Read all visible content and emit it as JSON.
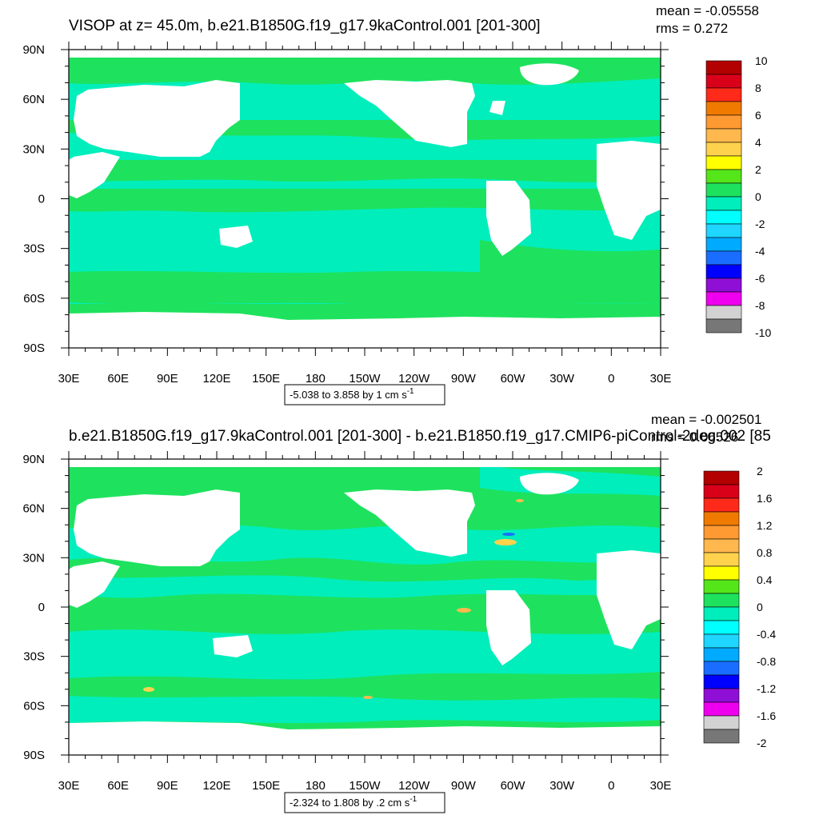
{
  "panels": [
    {
      "title": "VISOP at z=  45.0m, b.e21.B1850G.f19_g17.9kaControl.001 [201-300]",
      "mean_text": "mean = -0.05558",
      "rms_text": "rms = 0.272",
      "range_text": "-5.038 to 3.858 by 1 cm s",
      "range_sup": "-1"
    },
    {
      "title": "b.e21.B1850G.f19_g17.9kaControl.001 [201-300] - b.e21.B1850.f19_g17.CMIP6-piControl-2deg.002 [85",
      "mean_text": "mean = -0.002501",
      "rms_text": "rms = 0.06526",
      "range_text": "-2.324 to 1.808 by .2 cm s",
      "range_sup": "-1"
    }
  ],
  "chart_data": [
    {
      "type": "heatmap",
      "variable": "VISOP",
      "depth": "45.0m",
      "units": "cm s-1",
      "x_ticks": [
        "30E",
        "60E",
        "90E",
        "120E",
        "150E",
        "180",
        "150W",
        "120W",
        "90W",
        "60W",
        "30W",
        "0",
        "30E"
      ],
      "y_ticks": [
        "90N",
        "60N",
        "30N",
        "0",
        "30S",
        "60S",
        "90S"
      ],
      "xlim_deg_east": [
        30,
        390
      ],
      "ylim_deg_north": [
        -90,
        90
      ],
      "stats": {
        "mean": -0.05558,
        "rms": 0.272
      },
      "data_range": {
        "min": -5.038,
        "max": 3.858,
        "interval": 1
      },
      "colorbar": {
        "levels": [
          -10,
          -8,
          -6,
          -4,
          -2,
          0,
          2,
          4,
          6,
          8,
          10
        ],
        "labels": [
          "10",
          "8",
          "6",
          "4",
          "2",
          "0",
          "-2",
          "-4",
          "-6",
          "-8",
          "-10"
        ],
        "colors": [
          "#b30000",
          "#d9001a",
          "#ff2a1a",
          "#f07a00",
          "#ff9a33",
          "#ffb84d",
          "#ffd24d",
          "#ffff00",
          "#55e61a",
          "#1ee25e",
          "#00eebb",
          "#00ffff",
          "#1ed6ff",
          "#00aaff",
          "#1a6eff",
          "#0000ff",
          "#8f0fd6",
          "#ee00ee",
          "#d2d2d2",
          "#777777"
        ]
      }
    },
    {
      "type": "heatmap",
      "variable": "VISOP difference",
      "units": "cm s-1",
      "x_ticks": [
        "30E",
        "60E",
        "90E",
        "120E",
        "150E",
        "180",
        "150W",
        "120W",
        "90W",
        "60W",
        "30W",
        "0",
        "30E"
      ],
      "y_ticks": [
        "90N",
        "60N",
        "30N",
        "0",
        "30S",
        "60S",
        "90S"
      ],
      "xlim_deg_east": [
        30,
        390
      ],
      "ylim_deg_north": [
        -90,
        90
      ],
      "stats": {
        "mean": -0.002501,
        "rms": 0.06526
      },
      "data_range": {
        "min": -2.324,
        "max": 1.808,
        "interval": 0.2
      },
      "colorbar": {
        "levels": [
          -2,
          -1.6,
          -1.2,
          -0.8,
          -0.4,
          0,
          0.4,
          0.8,
          1.2,
          1.6,
          2
        ],
        "labels": [
          "2",
          "1.6",
          "1.2",
          "0.8",
          "0.4",
          "0",
          "-0.4",
          "-0.8",
          "-1.2",
          "-1.6",
          "-2"
        ],
        "colors": [
          "#b30000",
          "#d9001a",
          "#ff2a1a",
          "#f07a00",
          "#ff9a33",
          "#ffb84d",
          "#ffd24d",
          "#ffff00",
          "#55e61a",
          "#1ee25e",
          "#00eebb",
          "#00ffff",
          "#1ed6ff",
          "#00aaff",
          "#1a6eff",
          "#0000ff",
          "#8f0fd6",
          "#ee00ee",
          "#d2d2d2",
          "#777777"
        ]
      }
    }
  ]
}
